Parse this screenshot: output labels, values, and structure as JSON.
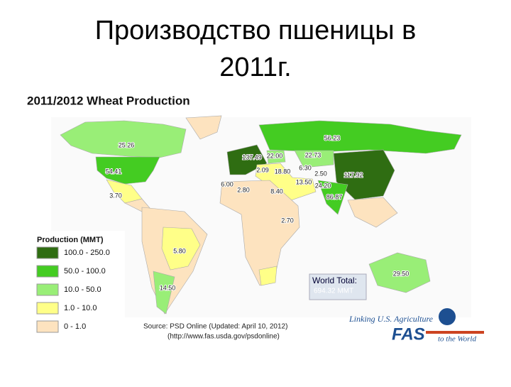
{
  "slide": {
    "title_line1": "Производство пшеницы в",
    "title_line2": "2011г."
  },
  "map": {
    "title": "2011/2012 Wheat Production",
    "legend": {
      "title": "Production (MMT)",
      "items": [
        {
          "label": "100.0 - 250.0",
          "color": "#2f6d12"
        },
        {
          "label": "50.0 - 100.0",
          "color": "#44cc22"
        },
        {
          "label": "10.0 - 50.0",
          "color": "#99ee77"
        },
        {
          "label": "1.0 - 10.0",
          "color": "#ffff88"
        },
        {
          "label": "0 - 1.0",
          "color": "#fde3bf"
        }
      ]
    },
    "labels": [
      "25.26",
      "54.41",
      "3.70",
      "137.49",
      "22.00",
      "22.73",
      "56.23",
      "2.09",
      "18.80",
      "6.30",
      "2.50",
      "117.92",
      "13.50",
      "24.20",
      "86.87",
      "6.00",
      "2.80",
      "8.40",
      "2.70",
      "5.80",
      "14.50",
      "29.50"
    ],
    "world_total": {
      "label": "World Total:",
      "value": "694.32 MMT"
    },
    "source": {
      "line1": "Source: PSD Online (Updated: April 10, 2012)",
      "line2": "(http://www.fas.usda.gov/psdonline)"
    },
    "logo": {
      "tagline": "Linking U.S. Agriculture",
      "name": "FAS",
      "sub": "to the World"
    }
  }
}
